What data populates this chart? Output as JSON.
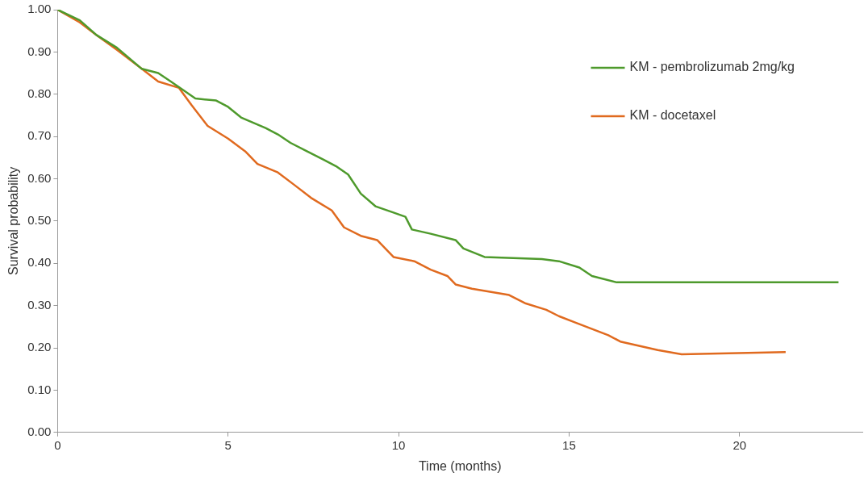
{
  "chart_data": {
    "type": "line",
    "xlabel": "Time (months)",
    "ylabel": "Survival probability",
    "legend": "top right",
    "grid": false,
    "marker": "none",
    "line_style": "solid",
    "xlim": [
      0,
      23.6
    ],
    "xticks": [
      0,
      5,
      10,
      15,
      20
    ],
    "ylim": [
      0,
      1
    ],
    "yticks": [
      {
        "value": 0,
        "label": "0.00"
      },
      {
        "value": 0.1,
        "label": "0.10"
      },
      {
        "value": 0.2,
        "label": "0.20"
      },
      {
        "value": 0.3,
        "label": "0.30"
      },
      {
        "value": 0.4,
        "label": "0.40"
      },
      {
        "value": 0.5,
        "label": "0.50"
      },
      {
        "value": 0.6,
        "label": "0.60"
      },
      {
        "value": 0.7,
        "label": "0.70"
      },
      {
        "value": 0.8,
        "label": "0.80"
      },
      {
        "value": 0.9,
        "label": "0.90"
      },
      {
        "value": 1,
        "label": "1.00"
      }
    ],
    "series": [
      {
        "name": "KM - pembrolizumab 2mg/kg",
        "color": "#4e9a2c",
        "x": [
          0,
          0.65,
          1.14,
          1.74,
          2.47,
          2.95,
          3.32,
          3.68,
          4.04,
          4.65,
          5.0,
          5.38,
          6.1,
          6.46,
          6.83,
          7.31,
          7.8,
          8.16,
          8.52,
          8.89,
          9.32,
          9.85,
          10.2,
          10.39,
          10.94,
          11.67,
          11.9,
          12.52,
          14.2,
          14.7,
          15.3,
          15.67,
          16.4,
          22.9
        ],
        "values": [
          1.0,
          0.975,
          0.94,
          0.91,
          0.86,
          0.85,
          0.83,
          0.81,
          0.79,
          0.785,
          0.77,
          0.745,
          0.72,
          0.705,
          0.685,
          0.665,
          0.645,
          0.63,
          0.61,
          0.565,
          0.535,
          0.52,
          0.51,
          0.48,
          0.47,
          0.455,
          0.435,
          0.415,
          0.41,
          0.405,
          0.39,
          0.37,
          0.355,
          0.355
        ]
      },
      {
        "name": "KM - docetaxel",
        "color": "#e06a1f",
        "x": [
          0,
          0.65,
          1.14,
          1.74,
          2.47,
          2.95,
          3.56,
          3.92,
          4.4,
          5.0,
          5.5,
          5.86,
          6.46,
          6.95,
          7.43,
          8.04,
          8.4,
          8.89,
          9.37,
          9.73,
          9.85,
          10.46,
          10.94,
          11.43,
          11.67,
          12.15,
          13.24,
          13.73,
          14.33,
          14.7,
          15.18,
          16.15,
          16.5,
          17.6,
          18.3,
          21.35
        ],
        "values": [
          1.0,
          0.97,
          0.94,
          0.905,
          0.86,
          0.83,
          0.815,
          0.775,
          0.725,
          0.695,
          0.665,
          0.635,
          0.615,
          0.585,
          0.555,
          0.525,
          0.485,
          0.465,
          0.455,
          0.425,
          0.415,
          0.405,
          0.385,
          0.37,
          0.35,
          0.34,
          0.325,
          0.305,
          0.29,
          0.275,
          0.26,
          0.23,
          0.215,
          0.195,
          0.185,
          0.19
        ]
      }
    ]
  }
}
